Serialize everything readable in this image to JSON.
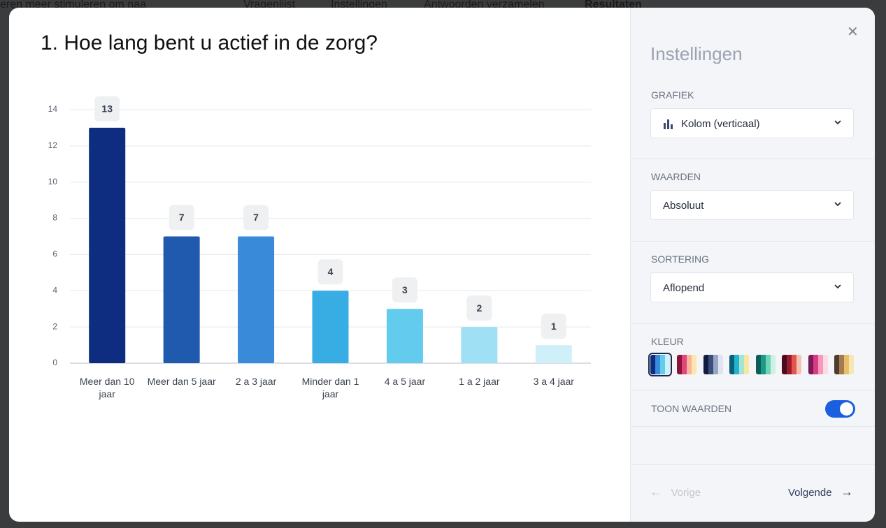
{
  "background": {
    "snippet": "eren meer stimuleren om naa",
    "tabs": [
      "Vragenlijst",
      "Instellingen",
      "Antwoorden verzamelen",
      "Resultaten"
    ]
  },
  "chart_data": {
    "type": "bar",
    "title": "1. Hoe lang bent u actief in de zorg?",
    "categories": [
      "Meer dan 10 jaar",
      "Meer dan 5 jaar",
      "2 a 3 jaar",
      "Minder dan 1 jaar",
      "4 a 5 jaar",
      "1 a 2 jaar",
      "3 a 4 jaar"
    ],
    "values": [
      13,
      7,
      7,
      4,
      3,
      2,
      1
    ],
    "colors": [
      "#0f2d80",
      "#1f5aae",
      "#398ad8",
      "#38ade4",
      "#62cbee",
      "#9fe0f4",
      "#cff0f9"
    ],
    "ylim": [
      0,
      14
    ],
    "yticks": [
      0,
      2,
      4,
      6,
      8,
      10,
      12,
      14
    ],
    "grid": true,
    "show_values": true
  },
  "settings_panel": {
    "title": "Instellingen",
    "sections": [
      {
        "label": "GRAFIEK",
        "value": "Kolom (verticaal)"
      },
      {
        "label": "WAARDEN",
        "value": "Absoluut"
      },
      {
        "label": "SORTERING",
        "value": "Aflopend"
      }
    ],
    "color_label": "KLEUR",
    "toggle_label": "TOON WAARDEN",
    "toggle_on": true
  },
  "footer": {
    "previous": "Vorige",
    "next": "Volgende"
  }
}
